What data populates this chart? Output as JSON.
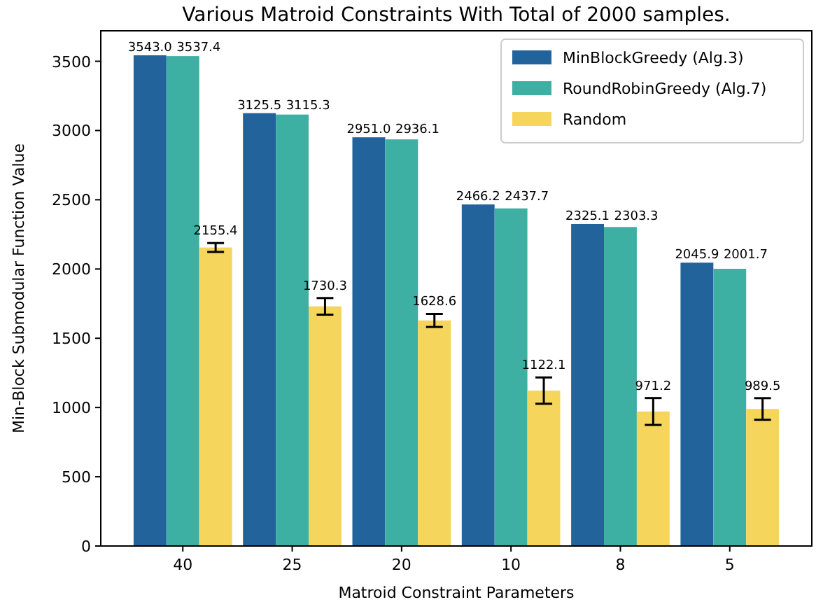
{
  "chart_data": {
    "type": "bar",
    "title": "Various Matroid Constraints With Total of 2000 samples.",
    "xlabel": "Matroid Constraint Parameters",
    "ylabel": "Min-Block Submodular Function Value",
    "categories": [
      "40",
      "25",
      "20",
      "10",
      "8",
      "5"
    ],
    "series": [
      {
        "name": "MinBlockGreedy (Alg.3)",
        "color": "#21639a",
        "values": [
          3543.0,
          3125.5,
          2951.0,
          2466.2,
          2325.1,
          2045.9
        ],
        "value_labels": [
          "3543.0",
          "3125.5",
          "2951.0",
          "2466.2",
          "2325.1",
          "2045.9"
        ]
      },
      {
        "name": "RoundRobinGreedy (Alg.7)",
        "color": "#3eafa3",
        "values": [
          3537.4,
          3115.3,
          2936.1,
          2437.7,
          2303.3,
          2001.7
        ],
        "value_labels": [
          "3537.4",
          "3115.3",
          "2936.1",
          "2437.7",
          "2303.3",
          "2001.7"
        ]
      },
      {
        "name": "Random",
        "color": "#f5d55c",
        "values": [
          2155.4,
          1730.3,
          1628.6,
          1122.1,
          971.2,
          989.5
        ],
        "value_labels": [
          "2155.4",
          "1730.3",
          "1628.6",
          "1122.1",
          "971.2",
          "989.5"
        ],
        "errors": [
          32,
          60,
          47,
          95,
          97,
          78
        ]
      }
    ],
    "ylim": [
      0,
      3720
    ],
    "yticks": [
      0,
      500,
      1000,
      1500,
      2000,
      2500,
      3000,
      3500
    ],
    "legend": "top right",
    "grid": false
  }
}
